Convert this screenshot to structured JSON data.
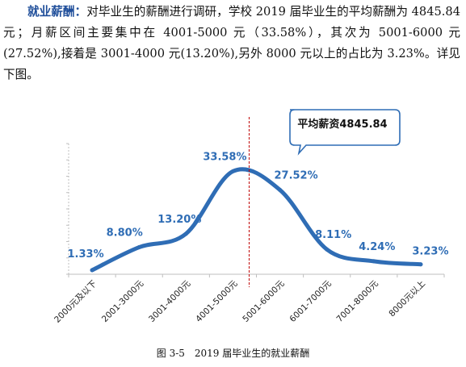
{
  "paragraph": {
    "lead": "就业薪酬：",
    "body": "对毕业生的薪酬进行调研，学校 2019 届毕业生的平均薪酬为 4845.84 元；月薪区间主要集中在 4001-5000 元（33.58%），其次为 5001-6000 元(27.52%),接着是 3001-4000 元(13.20%),另外 8000 元以上的占比为 3.23%。详见下图。"
  },
  "chart_data": {
    "type": "line",
    "title": "",
    "xlabel": "",
    "ylabel": "",
    "categories": [
      "2000元及以下",
      "2001-3000元",
      "3001-4000元",
      "4001-5000元",
      "5001-6000元",
      "6001-7000元",
      "7001-8000元",
      "8000元以上"
    ],
    "series": [
      {
        "values": [
          1.33,
          8.8,
          13.2,
          33.58,
          27.52,
          8.11,
          4.24,
          3.23
        ],
        "labels": [
          "1.33%",
          "8.80%",
          "13.20%",
          "33.58%",
          "27.52%",
          "8.11%",
          "4.24%",
          "3.23%"
        ]
      }
    ],
    "ylim": [
      0,
      40
    ],
    "grid": false,
    "legend": "none",
    "smooth": true,
    "reference_line": {
      "x": 4845.84,
      "style": "dashed",
      "color": "#C00000"
    },
    "callout": {
      "text": "平均薪资4845.84"
    },
    "colors": {
      "line": "#2F6DB5",
      "label": "#2F6DB5",
      "callout_border": "#2F6DB5",
      "axis": "#BFBFBF",
      "reference": "#C00000"
    }
  },
  "caption": "图 3-5　2019 届毕业生的就业薪酬"
}
